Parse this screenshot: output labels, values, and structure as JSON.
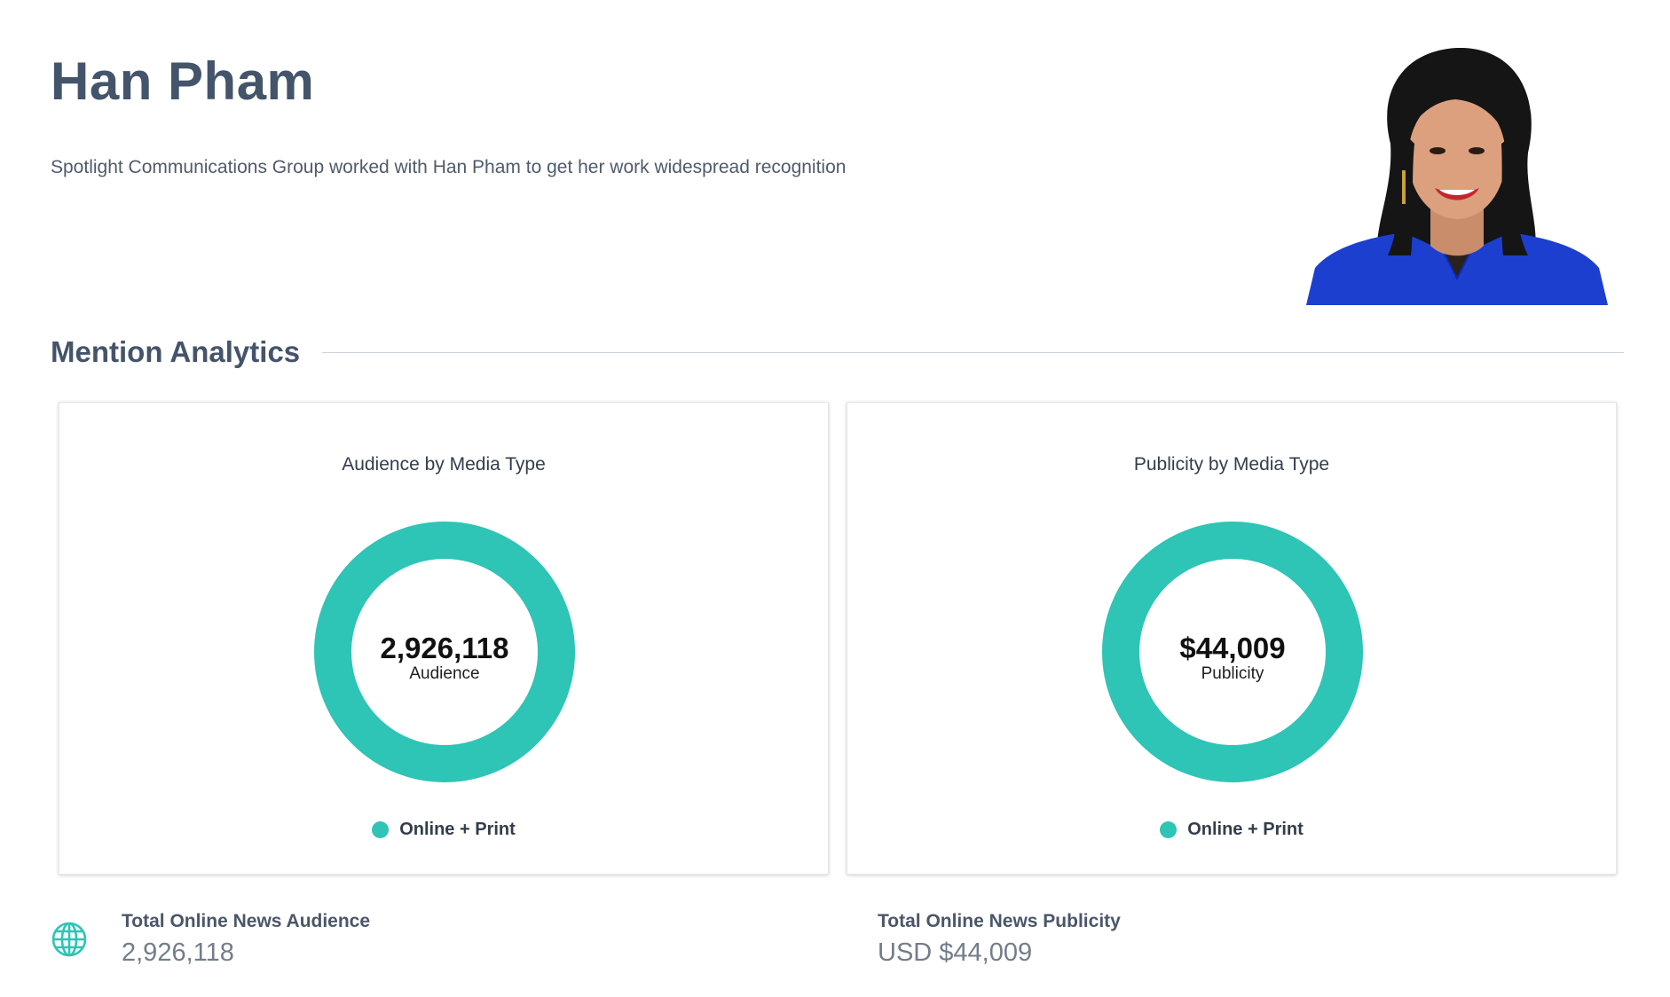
{
  "header": {
    "title": "Han Pham",
    "subtitle": "Spotlight Communications Group worked with Han Pham to get her work widespread recognition",
    "avatar_icon": "portrait-photo"
  },
  "section": {
    "title": "Mention Analytics"
  },
  "cards": [
    {
      "title": "Audience by Media Type",
      "center_value": "2,926,118",
      "center_label": "Audience",
      "legend_label": "Online + Print"
    },
    {
      "title": "Publicity by Media Type",
      "center_value": "$44,009",
      "center_label": "Publicity",
      "legend_label": "Online + Print"
    }
  ],
  "chart_data": [
    {
      "type": "pie",
      "title": "Audience by Media Type",
      "categories": [
        "Online + Print"
      ],
      "values": [
        2926118
      ],
      "colors": [
        "#2ec4b6"
      ]
    },
    {
      "type": "pie",
      "title": "Publicity by Media Type",
      "categories": [
        "Online + Print"
      ],
      "values": [
        44009
      ],
      "colors": [
        "#2ec4b6"
      ]
    }
  ],
  "stats": {
    "audience_label": "Total Online News Audience",
    "audience_value": "2,926,118",
    "publicity_label": "Total Online News Publicity",
    "publicity_value": "USD $44,009",
    "audience_icon": "globe-icon"
  },
  "colors": {
    "accent": "#2ec4b6",
    "heading": "#44546b",
    "text": "#4f5b6b"
  }
}
